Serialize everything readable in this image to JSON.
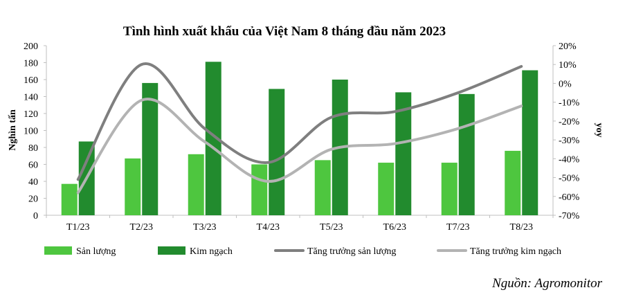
{
  "chart_data": {
    "type": "bar",
    "title": "Tình hình xuất khẩu của Việt Nam 8 tháng đầu năm 2023",
    "ylabel": "Nghìn tấn",
    "y2label": "yoy",
    "categories": [
      "T1/23",
      "T2/23",
      "T3/23",
      "T4/23",
      "T5/23",
      "T6/23",
      "T7/23",
      "T8/23"
    ],
    "ylim": [
      0,
      200
    ],
    "y_ticks": [
      "0",
      "20",
      "40",
      "60",
      "80",
      "100",
      "120",
      "140",
      "160",
      "180",
      "200"
    ],
    "y2lim": [
      -70,
      20
    ],
    "y2_ticks": [
      "-70%",
      "-60%",
      "-50%",
      "-40%",
      "-30%",
      "-20%",
      "-10%",
      "0%",
      "10%",
      "20%"
    ],
    "series": [
      {
        "name": "Sản lượng",
        "kind": "bar",
        "axis": "left",
        "color": "#4ec63f",
        "values": [
          37,
          67,
          72,
          60,
          65,
          62,
          62,
          76
        ]
      },
      {
        "name": "Kim ngạch",
        "kind": "bar",
        "axis": "left",
        "color": "#228b2e",
        "values": [
          87,
          156,
          181,
          149,
          160,
          145,
          143,
          171
        ]
      },
      {
        "name": "Tăng trưởng sản lượng",
        "kind": "line",
        "axis": "right",
        "color": "#7f7f7f",
        "values": [
          -51,
          10,
          -24,
          -42,
          -18,
          -15,
          -5,
          9
        ]
      },
      {
        "name": "Tăng trưởng kim ngạch",
        "kind": "line",
        "axis": "right",
        "color": "#b3b3b3",
        "values": [
          -58,
          -9,
          -31,
          -52,
          -35,
          -32,
          -24,
          -12
        ]
      }
    ],
    "grid": false,
    "legend_position": "bottom"
  },
  "source_note": "Nguồn: Agromonitor"
}
